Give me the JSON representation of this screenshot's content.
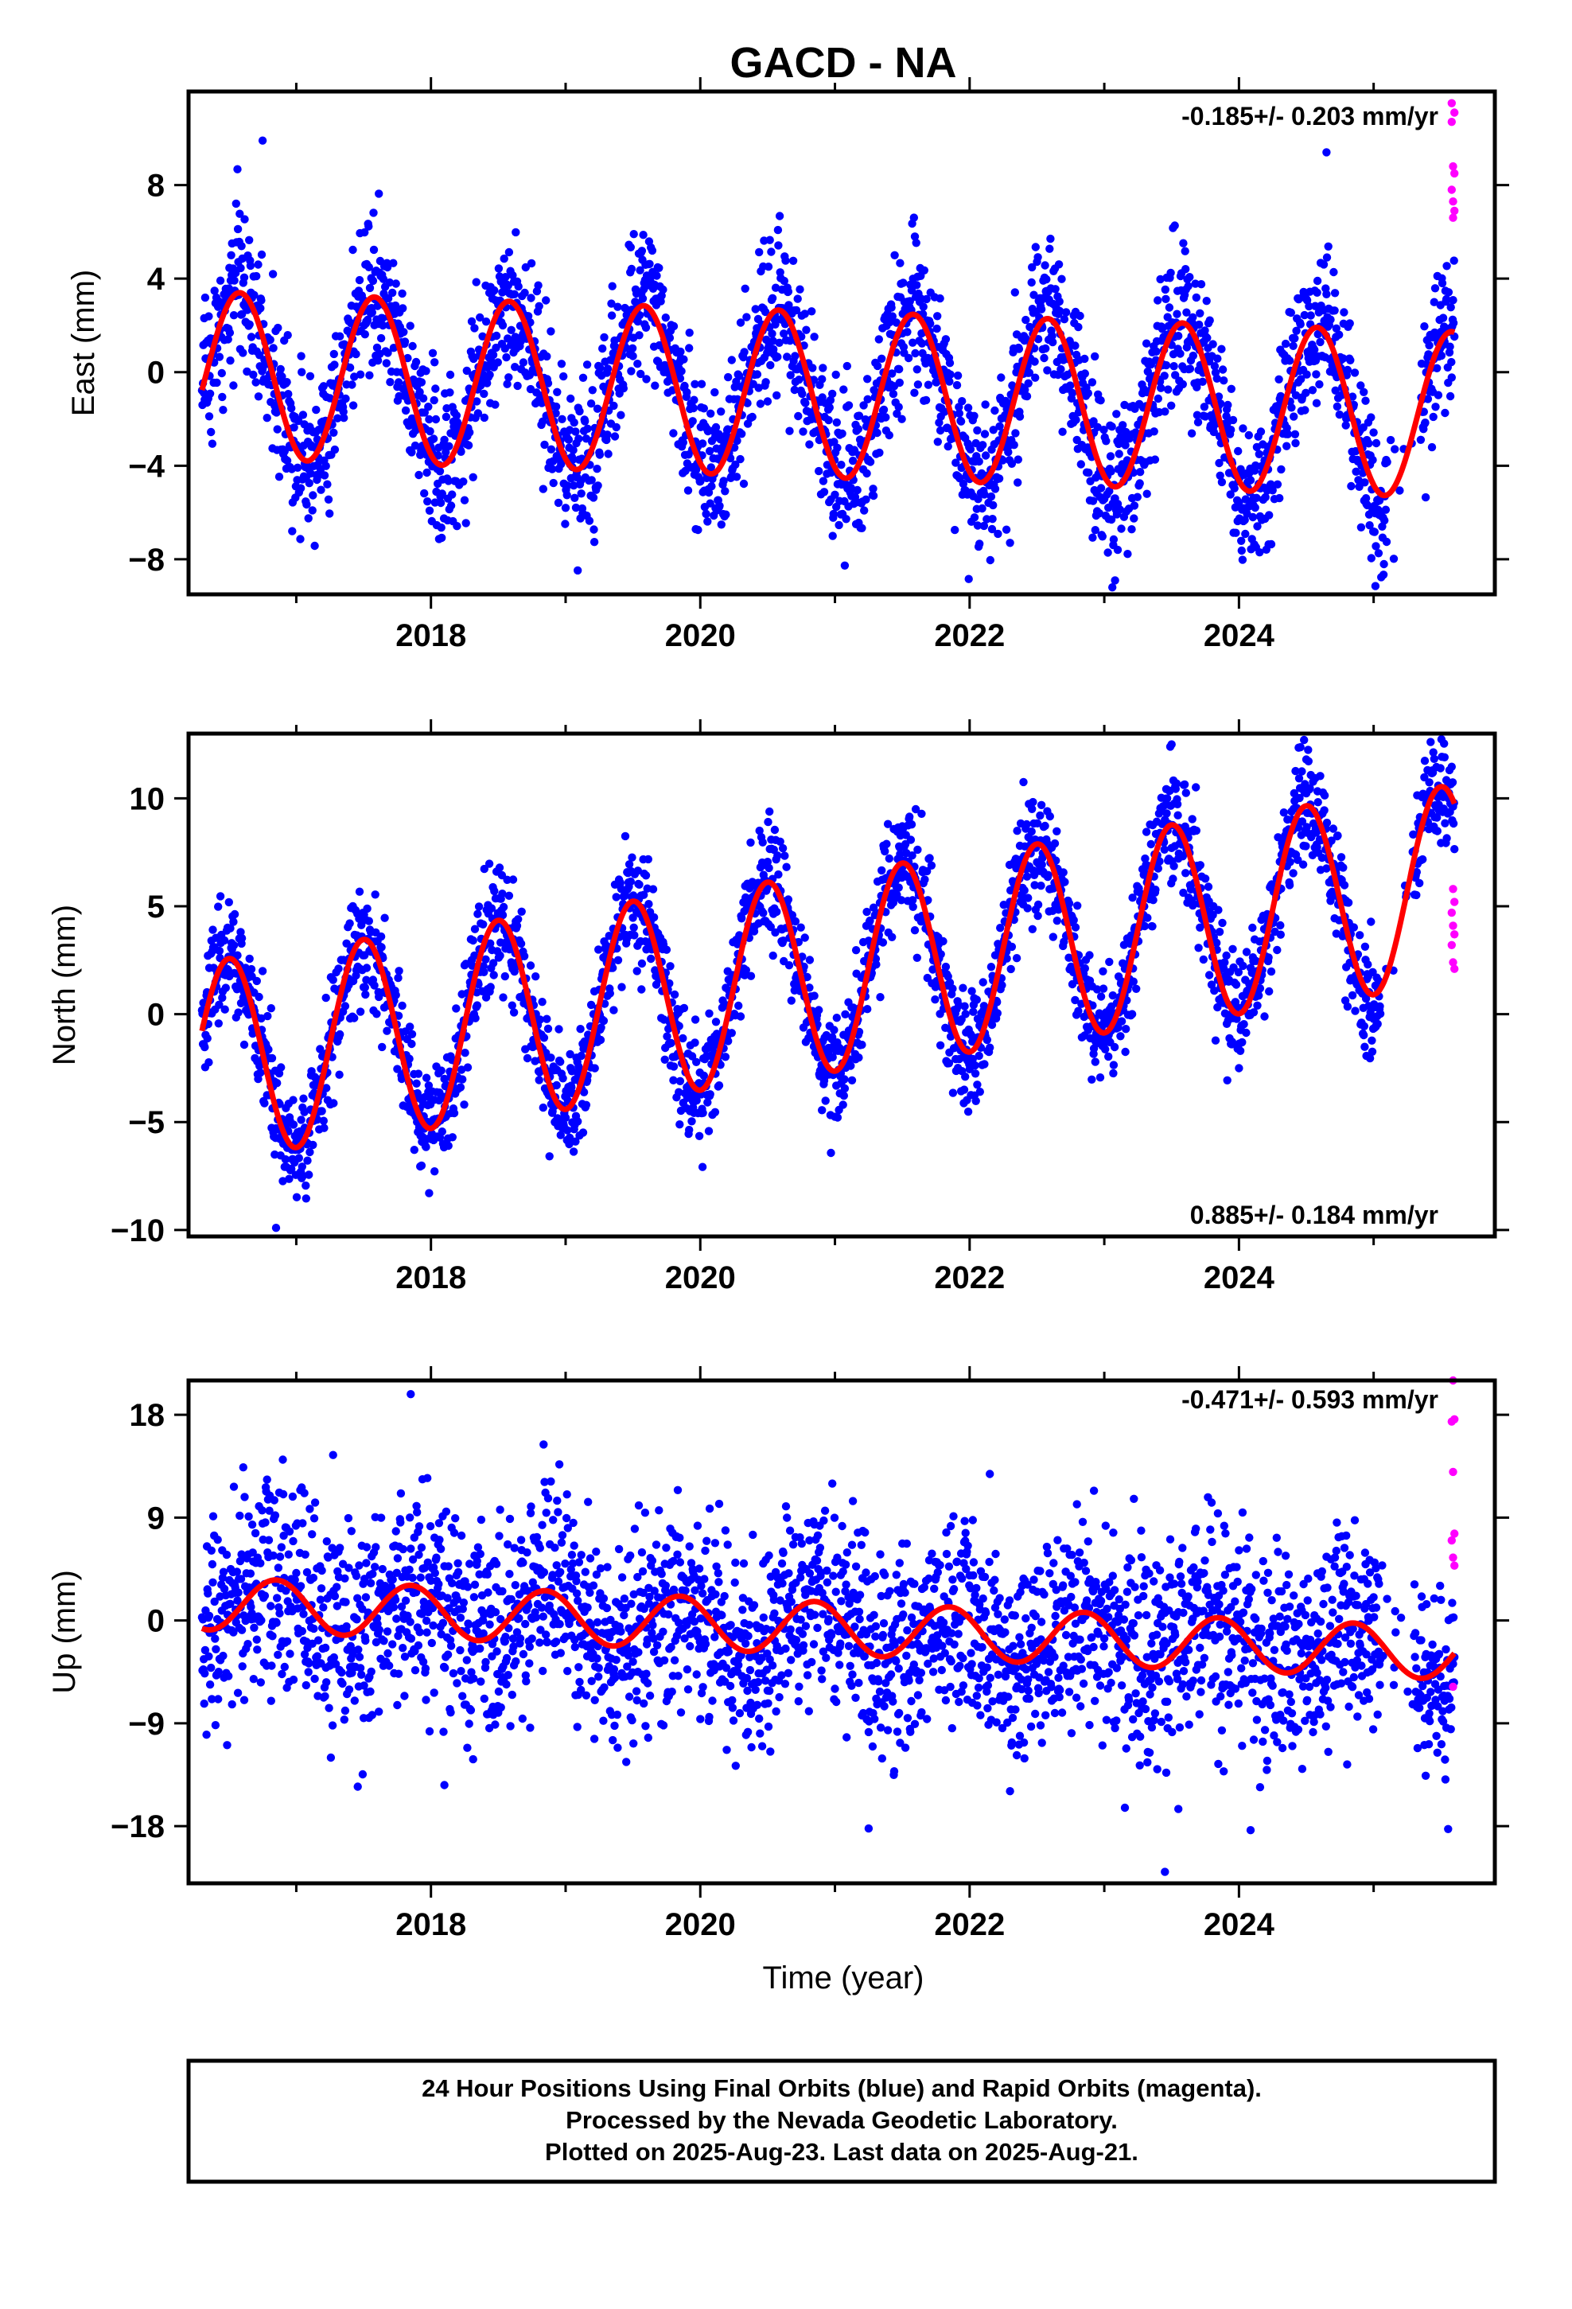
{
  "title": "GACD - NA",
  "xlabel": "Time (year)",
  "colors": {
    "final": "#0000ff",
    "rapid": "#ff00ff",
    "model": "#ff0000"
  },
  "footer": {
    "line1": "24 Hour Positions Using Final Orbits (blue) and Rapid Orbits (magenta).",
    "line2": "Processed by the Nevada Geodetic Laboratory.",
    "line3": "Plotted on 2025-Aug-23. Last data on 2025-Aug-21."
  },
  "chart_data": [
    {
      "type": "scatter",
      "component": "east",
      "ylabel": "East (mm)",
      "rate_label": "-0.185+/- 0.203 mm/yr",
      "xlim": [
        2016.2,
        2025.9
      ],
      "ylim": [
        -9.5,
        12
      ],
      "xticks": [
        2018,
        2020,
        2022,
        2024
      ],
      "xtick_labels": [
        "2018",
        "2020",
        "2022",
        "2024"
      ],
      "yticks": [
        -8,
        -4,
        0,
        4,
        8
      ],
      "ytick_labels": [
        "−8",
        "−4",
        "0",
        "4",
        "8"
      ],
      "model": {
        "x0": 2016.3,
        "offset": -0.1,
        "trend": -0.185,
        "amp": 3.55,
        "phase_year": 0.58,
        "x_end": 2025.6
      },
      "data_start": 2016.3,
      "data_end": 2025.6,
      "gap": [
        2025.1,
        2025.35
      ],
      "scatter": 1.6,
      "rapid_points": [
        [
          2025.58,
          11.5
        ],
        [
          2025.6,
          11.1
        ],
        [
          2025.58,
          10.7
        ],
        [
          2025.59,
          8.8
        ],
        [
          2025.6,
          8.5
        ],
        [
          2025.58,
          7.8
        ],
        [
          2025.59,
          7.3
        ],
        [
          2025.6,
          6.9
        ],
        [
          2025.59,
          6.6
        ]
      ],
      "outliers": [
        [
          2016.75,
          9.9
        ],
        [
          2022.3,
          -7.3
        ],
        [
          2023.08,
          -8.9
        ],
        [
          2024.65,
          9.4
        ],
        [
          2023.1,
          -7.6
        ]
      ]
    },
    {
      "type": "scatter",
      "component": "north",
      "ylabel": "North (mm)",
      "rate_label": "0.885+/- 0.184 mm/yr",
      "xlim": [
        2016.2,
        2025.9
      ],
      "ylim": [
        -10.3,
        13
      ],
      "xticks": [
        2018,
        2020,
        2022,
        2024
      ],
      "xtick_labels": [
        "2018",
        "2020",
        "2022",
        "2024"
      ],
      "yticks": [
        -10,
        -5,
        0,
        5,
        10
      ],
      "ytick_labels": [
        "−10",
        "−5",
        "0",
        "5",
        "10"
      ],
      "model": {
        "x0": 2016.3,
        "offset": -2.2,
        "trend": 0.885,
        "amp": 4.6,
        "phase_year": 0.5,
        "x_end": 2025.6
      },
      "data_start": 2016.3,
      "data_end": 2025.6,
      "gap": [
        2025.05,
        2025.3
      ],
      "scatter": 1.3,
      "rapid_points": [
        [
          2025.59,
          5.8
        ],
        [
          2025.6,
          5.2
        ],
        [
          2025.58,
          4.7
        ],
        [
          2025.59,
          4.1
        ],
        [
          2025.6,
          3.7
        ],
        [
          2025.58,
          3.2
        ],
        [
          2025.59,
          2.4
        ],
        [
          2025.6,
          2.1
        ]
      ],
      "outliers": [
        [
          2023.5,
          12.5
        ],
        [
          2016.85,
          -9.9
        ],
        [
          2024.5,
          11.8
        ]
      ]
    },
    {
      "type": "scatter",
      "component": "up",
      "ylabel": "Up (mm)",
      "rate_label": "-0.471+/- 0.593 mm/yr",
      "xlim": [
        2016.2,
        2025.9
      ],
      "ylim": [
        -23,
        21
      ],
      "xticks": [
        2018,
        2020,
        2022,
        2024
      ],
      "xtick_labels": [
        "2018",
        "2020",
        "2022",
        "2024"
      ],
      "yticks": [
        -18,
        -9,
        0,
        9,
        18
      ],
      "ytick_labels": [
        "−18",
        "−9",
        "0",
        "9",
        "18"
      ],
      "model": {
        "x0": 2016.3,
        "offset": 1.5,
        "trend": -0.471,
        "amp": 2.3,
        "phase_year": 0.85,
        "x_end": 2025.6
      },
      "data_start": 2016.3,
      "data_end": 2025.6,
      "gap": [
        2025.05,
        2025.3
      ],
      "scatter": 4.5,
      "rapid_points": [
        [
          2025.59,
          21.0
        ],
        [
          2025.6,
          17.6
        ],
        [
          2025.58,
          17.4
        ],
        [
          2025.59,
          13.0
        ],
        [
          2025.6,
          7.6
        ],
        [
          2025.58,
          7.0
        ],
        [
          2025.59,
          5.5
        ],
        [
          2025.6,
          4.8
        ],
        [
          2025.59,
          -5.8
        ]
      ],
      "outliers": [
        [
          2017.85,
          19.8
        ],
        [
          2023.45,
          -22.0
        ],
        [
          2021.25,
          -18.2
        ],
        [
          2023.55,
          -16.5
        ],
        [
          2018.1,
          -14.4
        ]
      ]
    }
  ]
}
